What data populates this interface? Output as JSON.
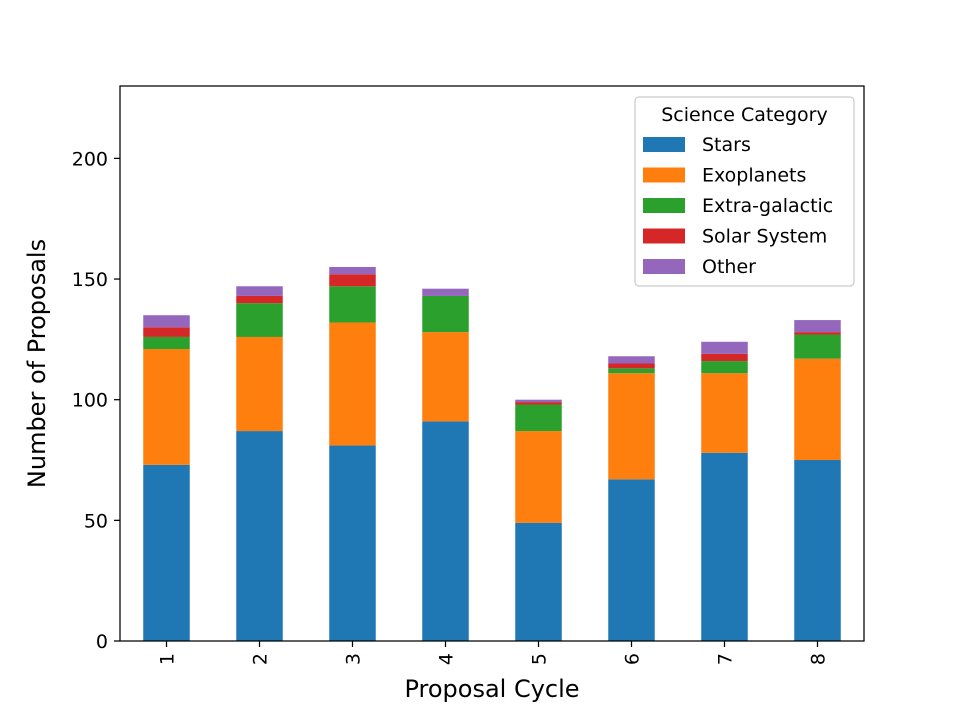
{
  "chart_data": {
    "type": "bar",
    "stacked": true,
    "categories": [
      "1",
      "2",
      "3",
      "4",
      "5",
      "6",
      "7",
      "8"
    ],
    "series": [
      {
        "name": "Stars",
        "values": [
          73,
          87,
          81,
          91,
          49,
          67,
          78,
          75
        ]
      },
      {
        "name": "Exoplanets",
        "values": [
          48,
          39,
          51,
          37,
          38,
          44,
          33,
          42
        ]
      },
      {
        "name": "Extra-galactic",
        "values": [
          5,
          14,
          15,
          15,
          11,
          2,
          5,
          10
        ]
      },
      {
        "name": "Solar System",
        "values": [
          4,
          3,
          5,
          0,
          1,
          2,
          3,
          1
        ]
      },
      {
        "name": "Other",
        "values": [
          5,
          4,
          3,
          3,
          1,
          3,
          5,
          5
        ]
      }
    ],
    "colors": [
      "#1f77b4",
      "#ff7f0e",
      "#2ca02c",
      "#d62728",
      "#9467bd"
    ],
    "xlabel": "Proposal Cycle",
    "ylabel": "Number of Proposals",
    "ylim": [
      0,
      230
    ],
    "yticks": [
      0,
      50,
      100,
      150,
      200
    ],
    "legend": {
      "title": "Science Category",
      "placement": "top-right"
    },
    "grid": false
  }
}
